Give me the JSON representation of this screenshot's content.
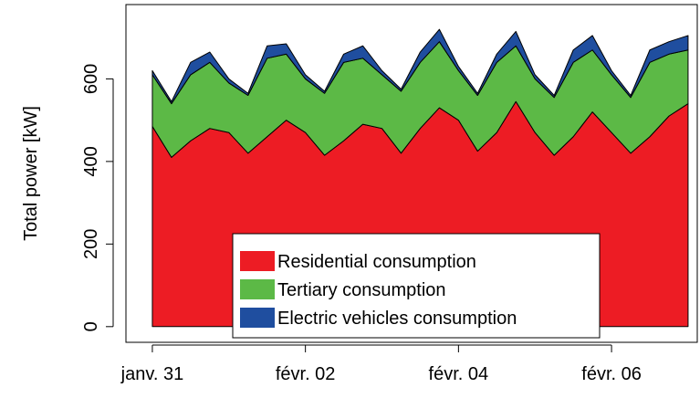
{
  "chart_data": {
    "type": "stacked_area",
    "y_label": "Total power [kW]",
    "x": [
      0,
      0.25,
      0.5,
      0.75,
      1,
      1.25,
      1.5,
      1.75,
      2,
      2.25,
      2.5,
      2.75,
      3,
      3.25,
      3.5,
      3.75,
      4,
      4.25,
      4.5,
      4.75,
      5,
      5.25,
      5.5,
      5.75,
      6,
      6.25,
      6.5,
      6.75,
      7
    ],
    "series": [
      {
        "name": "Residential consumption",
        "color": "#ed1c24",
        "values": [
          485,
          410,
          450,
          480,
          470,
          420,
          460,
          500,
          470,
          415,
          450,
          490,
          480,
          420,
          480,
          530,
          500,
          425,
          470,
          545,
          470,
          415,
          460,
          520,
          470,
          420,
          460,
          510,
          540
        ]
      },
      {
        "name": "Tertiary consumption",
        "color": "#5cb946",
        "values": [
          125,
          130,
          160,
          160,
          120,
          140,
          190,
          160,
          130,
          150,
          190,
          160,
          130,
          150,
          160,
          160,
          120,
          135,
          170,
          135,
          130,
          140,
          180,
          150,
          140,
          135,
          180,
          150,
          130
        ]
      },
      {
        "name": "Electric vehicles consumption",
        "color": "#1f4e9f",
        "values": [
          10,
          5,
          30,
          25,
          10,
          5,
          30,
          25,
          10,
          5,
          20,
          30,
          10,
          5,
          25,
          30,
          10,
          5,
          20,
          35,
          10,
          5,
          30,
          35,
          10,
          5,
          30,
          30,
          35
        ]
      }
    ],
    "xlim": [
      -0.345,
      7.12
    ],
    "xticks": [
      {
        "value": 0,
        "label": "janv. 31"
      },
      {
        "value": 2,
        "label": "févr. 02"
      },
      {
        "value": 4,
        "label": "févr. 04"
      },
      {
        "value": 6,
        "label": "févr. 06"
      }
    ],
    "ylim": [
      -38,
      780
    ],
    "yticks": [
      0,
      200,
      400,
      600
    ],
    "legend": "bottom"
  }
}
